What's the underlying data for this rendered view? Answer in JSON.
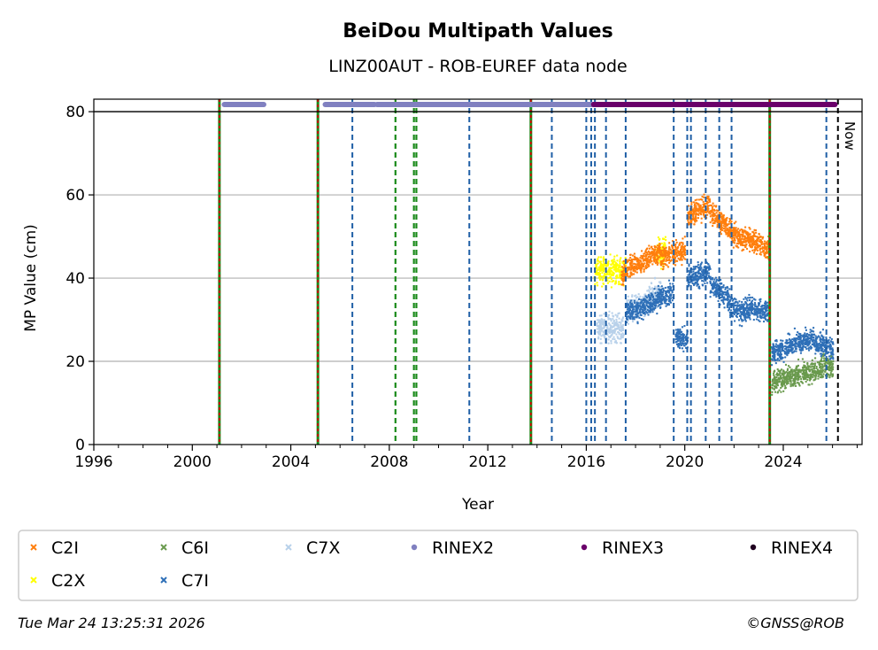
{
  "chart_data": {
    "type": "scatter",
    "title": "BeiDou Multipath Values",
    "subtitle": "LINZ00AUT - ROB-EUREF data node",
    "xlabel": "Year",
    "ylabel": "MP Value (cm)",
    "xlim": [
      1996,
      2027.2
    ],
    "ylim": [
      0,
      83
    ],
    "x_ticks": [
      1996,
      2000,
      2004,
      2008,
      2012,
      2016,
      2020,
      2024
    ],
    "y_ticks": [
      0,
      20,
      40,
      60,
      80
    ],
    "grid": "horizontal",
    "now_label": "Now",
    "now_year": 2026.22,
    "legend": {
      "placement": "bottom",
      "entries": [
        {
          "name": "C2I",
          "color": "#ff7f0e",
          "marker": "x"
        },
        {
          "name": "C6I",
          "color": "#6a9a4e",
          "marker": "x"
        },
        {
          "name": "C7X",
          "color": "#b8d1ea",
          "marker": "x"
        },
        {
          "name": "RINEX2",
          "color": "#8080c0",
          "marker": "o"
        },
        {
          "name": "RINEX3",
          "color": "#6a006a",
          "marker": "o"
        },
        {
          "name": "RINEX4",
          "color": "#200020",
          "marker": "o"
        },
        {
          "name": "C2X",
          "color": "#ffff00",
          "marker": "x"
        },
        {
          "name": "C7I",
          "color": "#2f70b8",
          "marker": "x"
        }
      ]
    },
    "event_lines": {
      "red_green": [
        2001.1,
        2005.1,
        2013.75,
        2023.45
      ],
      "green": [
        2008.25,
        2009.0,
        2009.1
      ],
      "blue": [
        2006.5,
        2011.25,
        2014.6,
        2016.0,
        2016.2,
        2016.35,
        2016.8,
        2017.6,
        2019.55,
        2020.1,
        2020.25,
        2020.85,
        2021.4,
        2021.9,
        2025.75
      ]
    },
    "availability": [
      {
        "format": "RINEX2",
        "ranges": [
          [
            2001.3,
            2002.9
          ],
          [
            2005.4,
            2007.4
          ],
          [
            2007.5,
            2016.5
          ]
        ]
      },
      {
        "format": "RINEX3",
        "ranges": [
          [
            2016.3,
            2026.1
          ]
        ]
      }
    ],
    "series": [
      {
        "name": "C2I",
        "segments": [
          {
            "x": [
              2017.4,
              2018.0
            ],
            "y_start": 41,
            "y_end": 44
          },
          {
            "x": [
              2018.0,
              2019.0
            ],
            "y_start": 43,
            "y_end": 47
          },
          {
            "x": [
              2019.0,
              2020.0
            ],
            "y_start": 45,
            "y_end": 47
          },
          {
            "x": [
              2020.1,
              2021.0
            ],
            "y_start": 55,
            "y_end": 58
          },
          {
            "x": [
              2021.0,
              2021.8
            ],
            "y_start": 56,
            "y_end": 52
          },
          {
            "x": [
              2021.8,
              2022.5
            ],
            "y_start": 51,
            "y_end": 49
          },
          {
            "x": [
              2022.5,
              2023.4
            ],
            "y_start": 50,
            "y_end": 47
          }
        ]
      },
      {
        "name": "C2X",
        "segments": [
          {
            "x": [
              2016.3,
              2017.6
            ],
            "y_start": 42,
            "y_end": 42
          },
          {
            "x": [
              2018.8,
              2019.2
            ],
            "y_start": 46,
            "y_end": 47
          }
        ]
      },
      {
        "name": "C7X",
        "segments": [
          {
            "x": [
              2016.4,
              2017.5
            ],
            "y_start": 28,
            "y_end": 28
          },
          {
            "x": [
              2017.6,
              2018.5
            ],
            "y_start": 32,
            "y_end": 34
          },
          {
            "x": [
              2018.5,
              2019.0
            ],
            "y_start": 35,
            "y_end": 37
          }
        ]
      },
      {
        "name": "C7I",
        "segments": [
          {
            "x": [
              2017.6,
              2018.3
            ],
            "y_start": 32,
            "y_end": 33
          },
          {
            "x": [
              2018.3,
              2019.5
            ],
            "y_start": 33,
            "y_end": 37
          },
          {
            "x": [
              2019.6,
              2020.1
            ],
            "y_start": 26,
            "y_end": 25
          },
          {
            "x": [
              2020.1,
              2021.0
            ],
            "y_start": 40,
            "y_end": 42
          },
          {
            "x": [
              2021.0,
              2021.8
            ],
            "y_start": 39,
            "y_end": 35
          },
          {
            "x": [
              2021.8,
              2022.5
            ],
            "y_start": 33,
            "y_end": 32
          },
          {
            "x": [
              2022.5,
              2023.4
            ],
            "y_start": 33,
            "y_end": 32
          },
          {
            "x": [
              2023.5,
              2024.3
            ],
            "y_start": 22,
            "y_end": 24
          },
          {
            "x": [
              2024.3,
              2025.2
            ],
            "y_start": 24,
            "y_end": 26
          },
          {
            "x": [
              2025.2,
              2026.0
            ],
            "y_start": 25,
            "y_end": 23
          }
        ]
      },
      {
        "name": "C6I",
        "segments": [
          {
            "x": [
              2023.5,
              2024.5
            ],
            "y_start": 15,
            "y_end": 17
          },
          {
            "x": [
              2024.5,
              2026.0
            ],
            "y_start": 17,
            "y_end": 19
          }
        ]
      }
    ]
  },
  "footer": {
    "timestamp": "Tue Mar 24 13:25:31 2026",
    "credit": "©GNSS@ROB"
  }
}
